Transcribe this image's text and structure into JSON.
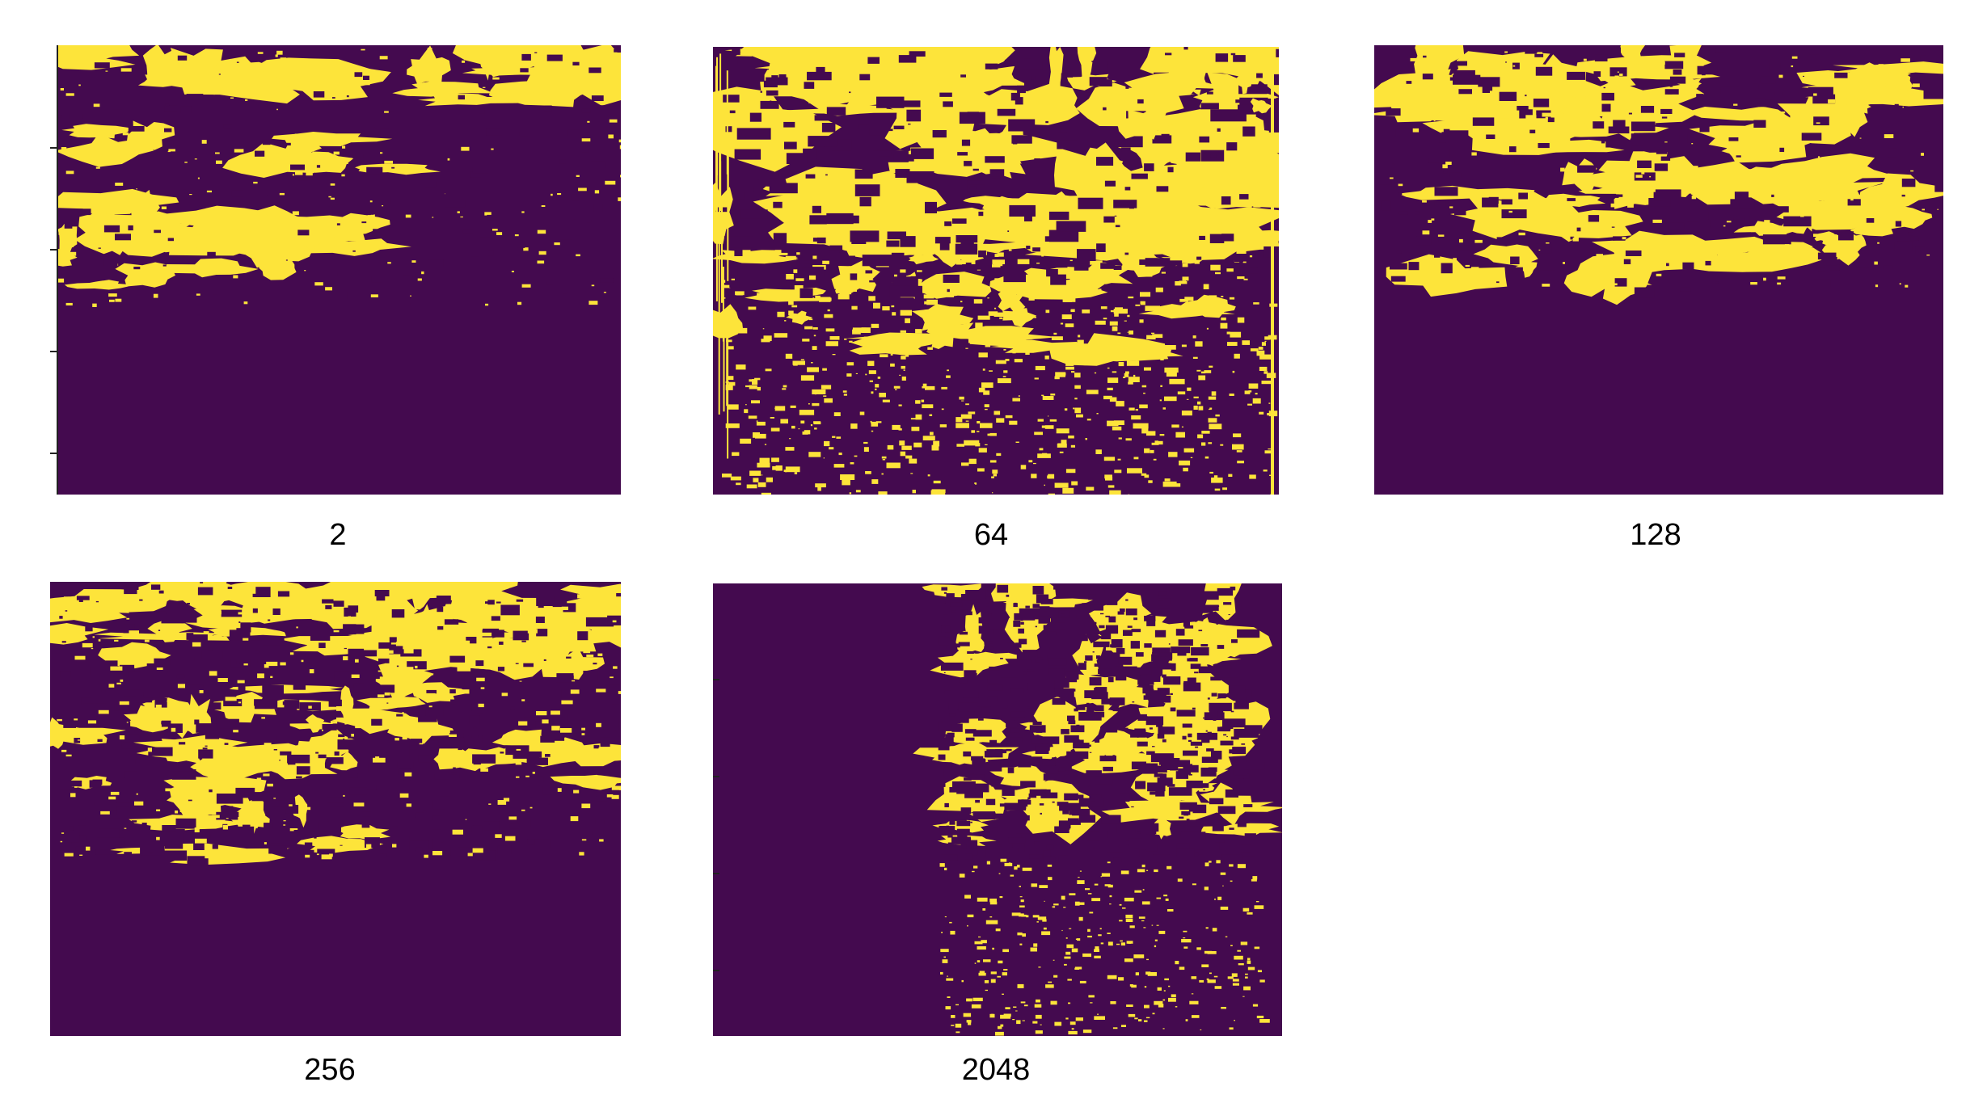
{
  "colors": {
    "background": "#440a4f",
    "foreground": "#fde43a"
  },
  "panels": [
    {
      "label": "2"
    },
    {
      "label": "64"
    },
    {
      "label": "128"
    },
    {
      "label": "256"
    },
    {
      "label": "2048"
    }
  ]
}
